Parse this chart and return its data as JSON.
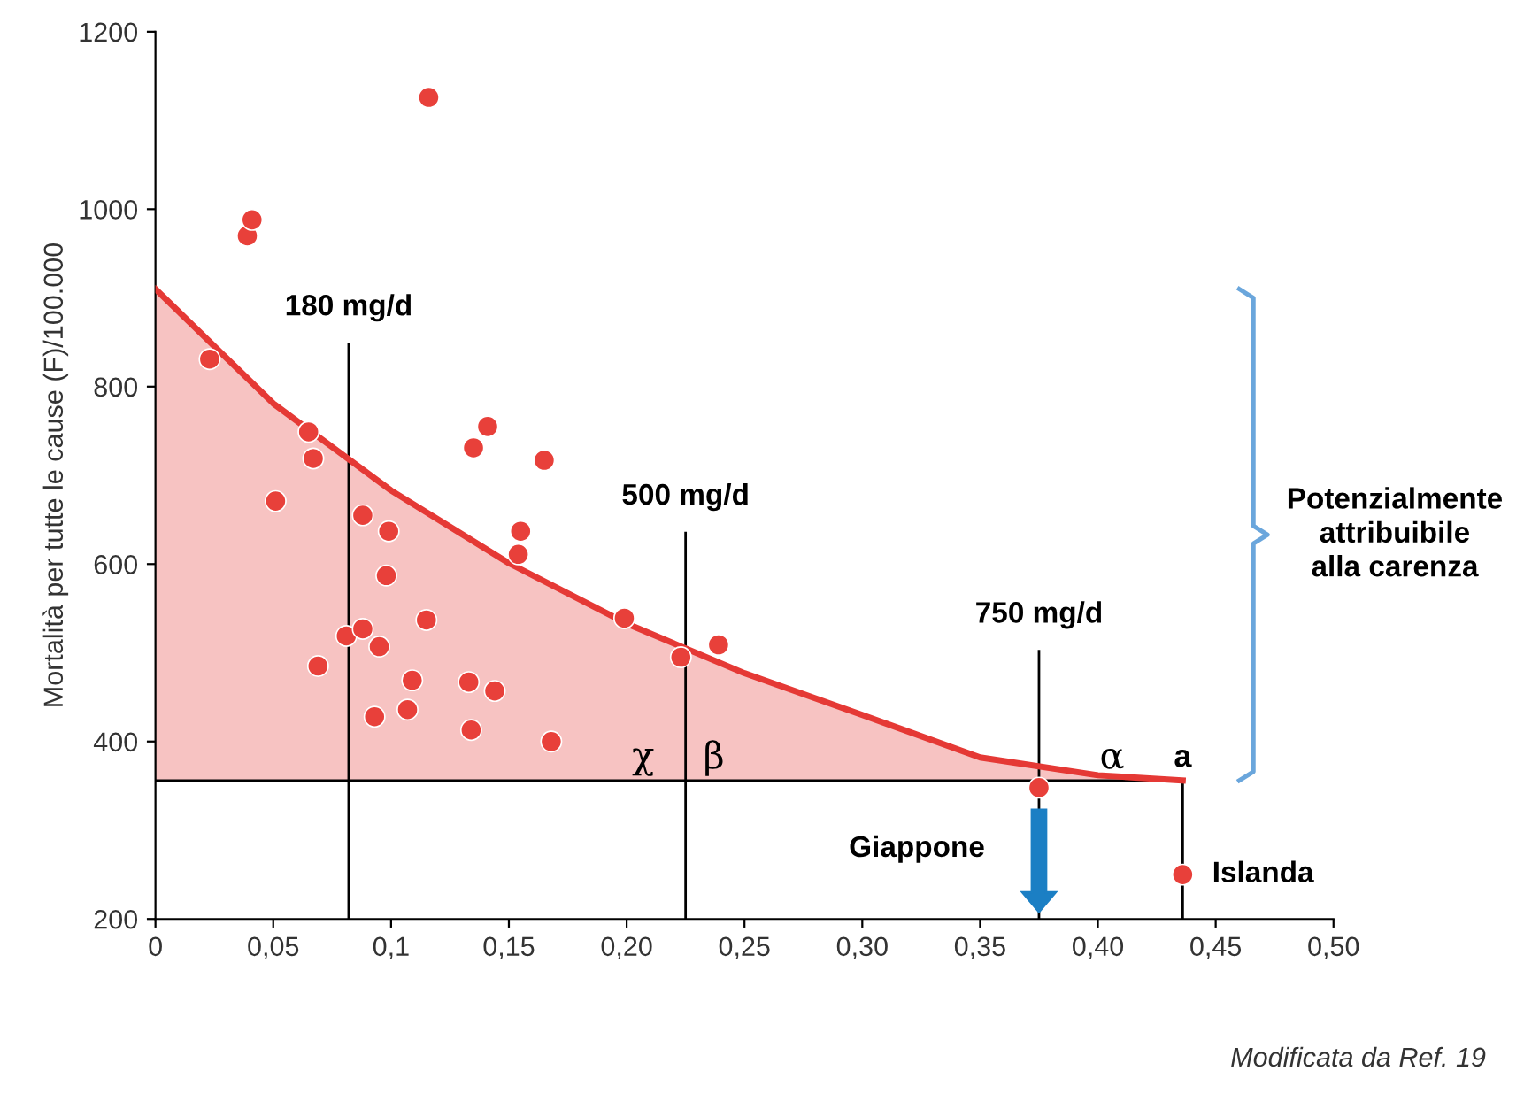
{
  "chart_data": {
    "type": "scatter",
    "ylabel": "Mortalità per tutte le cause (F)/100.000",
    "xlim": [
      0,
      0.5
    ],
    "ylim": [
      200,
      1200
    ],
    "xticks": [
      0,
      {
        "value": 0.05,
        "label": "0,05"
      },
      {
        "value": 0.1,
        "label": "0,1"
      },
      {
        "value": 0.15,
        "label": "0,15"
      },
      {
        "value": 0.2,
        "label": "0,20"
      },
      {
        "value": 0.25,
        "label": "0,25"
      },
      {
        "value": 0.3,
        "label": "0,30"
      },
      {
        "value": 0.35,
        "label": "0,35"
      },
      {
        "value": 0.4,
        "label": "0,40"
      },
      {
        "value": 0.45,
        "label": "0,45"
      },
      {
        "value": 0.5,
        "label": "0,50"
      }
    ],
    "yticks": [
      200,
      400,
      600,
      800,
      1000,
      1200
    ],
    "grid": false,
    "series": [
      {
        "marker": "circle",
        "color": "#e8403a",
        "x": [
          0.023,
          0.039,
          0.041,
          0.116,
          0.065,
          0.067,
          0.051,
          0.088,
          0.099,
          0.098,
          0.081,
          0.088,
          0.095,
          0.069,
          0.115,
          0.109,
          0.093,
          0.107,
          0.133,
          0.144,
          0.134,
          0.168,
          0.141,
          0.135,
          0.165,
          0.155,
          0.154,
          0.199,
          0.223,
          0.239,
          0.375,
          0.436
        ],
        "values": [
          831,
          970,
          988,
          1126,
          749,
          719,
          671,
          655,
          637,
          587,
          519,
          527,
          507,
          485,
          537,
          469,
          428,
          436,
          467,
          457,
          413,
          400,
          755,
          731,
          717,
          637,
          611,
          539,
          495,
          509,
          348,
          250
        ]
      },
      {
        "type": "line",
        "marker": "none",
        "color": "#e53935",
        "x": [
          0,
          0.05,
          0.1,
          0.15,
          0.2,
          0.25,
          0.3,
          0.35,
          0.4,
          0.436
        ],
        "values": [
          910,
          781,
          683,
          601,
          533,
          477,
          430,
          382,
          362,
          356
        ],
        "lower": [
          356,
          356,
          356,
          356,
          356,
          356,
          356,
          356,
          356,
          356
        ],
        "upper": [
          910,
          781,
          683,
          601,
          533,
          477,
          430,
          382,
          362,
          356
        ]
      }
    ],
    "ref_lines": [
      {
        "axis": "y",
        "value": 356,
        "color": "#000000"
      },
      {
        "axis": "x",
        "value": 0.082,
        "label": "180 mg/d",
        "color": "#000000"
      },
      {
        "axis": "x",
        "value": 0.225,
        "label": "500 mg/d",
        "color": "#000000"
      },
      {
        "axis": "x",
        "value": 0.375,
        "label": "750 mg/d",
        "color": "#000000"
      },
      {
        "axis": "x",
        "value": 0.436,
        "label": "a",
        "color": "#000000"
      }
    ],
    "annotations": [
      "χ",
      "β",
      "α",
      {
        "text": "Giappone",
        "x": 0.375,
        "y": 348
      },
      {
        "text": "Islanda",
        "x": 0.436,
        "y": 250
      },
      "Potenzialmente\nattribuibile\nalla carenza",
      "Modificata da Ref. 19"
    ]
  }
}
